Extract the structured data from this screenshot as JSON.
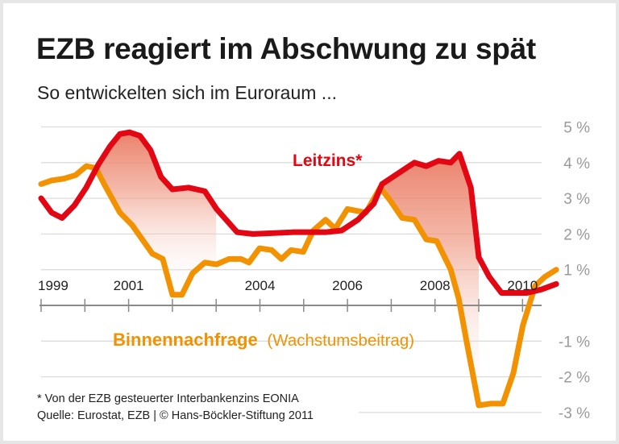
{
  "title": "EZB reagiert im Abschwung zu spät",
  "subtitle": "So entwickelten sich im Euroraum ...",
  "footnote": "* Von der EZB gesteuerter Interbankenzins EONIA",
  "source": "Quelle: Eurostat, EZB | © Hans-Böckler-Stiftung 2011",
  "chart_data": {
    "type": "line",
    "xlim": [
      1999,
      2011
    ],
    "ylim": [
      -3,
      5
    ],
    "grid": true,
    "x_tick_labels": [
      "1999",
      "2001",
      "2004",
      "2006",
      "2008",
      "2010"
    ],
    "x_ticks": [
      1999,
      2000,
      2001,
      2002,
      2003,
      2004,
      2005,
      2006,
      2007,
      2008,
      2009,
      2010
    ],
    "y_tick_labels": [
      {
        "value": 5,
        "label": "5 %"
      },
      {
        "value": 4,
        "label": "4 %"
      },
      {
        "value": 3,
        "label": "3 %"
      },
      {
        "value": 2,
        "label": "2 %"
      },
      {
        "value": 1,
        "label": "1 %"
      },
      {
        "value": -1,
        "label": "-1 %"
      },
      {
        "value": -2,
        "label": "-2 %"
      },
      {
        "value": -3,
        "label": "-3 %"
      }
    ],
    "series": [
      {
        "name": "Leitzins*",
        "color": "#e30613",
        "x": [
          1999.0,
          1999.24,
          1999.48,
          1999.76,
          2000.03,
          2000.31,
          2000.57,
          2000.8,
          2001.02,
          2001.26,
          2001.5,
          2001.74,
          2002.0,
          2002.37,
          2002.74,
          2003.01,
          2003.48,
          2003.84,
          2004.76,
          2005.5,
          2005.87,
          2006.24,
          2006.6,
          2006.79,
          2007.16,
          2007.53,
          2007.8,
          2008.08,
          2008.36,
          2008.56,
          2008.82,
          2009.0,
          2009.24,
          2009.52,
          2010.1,
          2010.44,
          2010.77
        ],
        "y": [
          3.0,
          2.6,
          2.45,
          2.8,
          3.3,
          3.95,
          4.45,
          4.8,
          4.85,
          4.75,
          4.35,
          3.6,
          3.25,
          3.3,
          3.2,
          2.7,
          2.05,
          2.0,
          2.05,
          2.05,
          2.1,
          2.4,
          2.85,
          3.4,
          3.7,
          4.0,
          3.9,
          4.05,
          4.0,
          4.25,
          3.3,
          1.35,
          0.8,
          0.35,
          0.35,
          0.45,
          0.6
        ]
      },
      {
        "name": "Binnennachfrage",
        "name_suffix": "(Wachstumsbeitrag)",
        "color": "#f39200",
        "x": [
          1999.0,
          1999.24,
          1999.52,
          1999.79,
          2000.03,
          2000.25,
          2000.44,
          2000.8,
          2001.08,
          2001.54,
          2001.78,
          2002.0,
          2002.22,
          2002.46,
          2002.74,
          2003.01,
          2003.29,
          2003.57,
          2003.75,
          2003.99,
          2004.27,
          2004.49,
          2004.71,
          2004.99,
          2005.22,
          2005.5,
          2005.72,
          2006.0,
          2006.42,
          2006.75,
          2006.97,
          2007.25,
          2007.53,
          2007.8,
          2008.04,
          2008.36,
          2008.54,
          2008.72,
          2009.0,
          2009.28,
          2009.55,
          2009.79,
          2010.01,
          2010.29,
          2010.51,
          2010.77
        ],
        "y": [
          3.4,
          3.5,
          3.55,
          3.65,
          3.9,
          3.85,
          3.4,
          2.6,
          2.25,
          1.45,
          1.3,
          0.3,
          0.3,
          0.9,
          1.2,
          1.15,
          1.3,
          1.3,
          1.2,
          1.6,
          1.55,
          1.3,
          1.55,
          1.5,
          2.1,
          2.4,
          2.15,
          2.7,
          2.6,
          3.3,
          2.95,
          2.45,
          2.4,
          1.85,
          1.8,
          1.0,
          0.2,
          -1.0,
          -2.8,
          -2.75,
          -2.75,
          -1.9,
          -0.55,
          0.55,
          0.8,
          1.0
        ]
      }
    ],
    "shaded_gap_color": "#e8735a"
  }
}
